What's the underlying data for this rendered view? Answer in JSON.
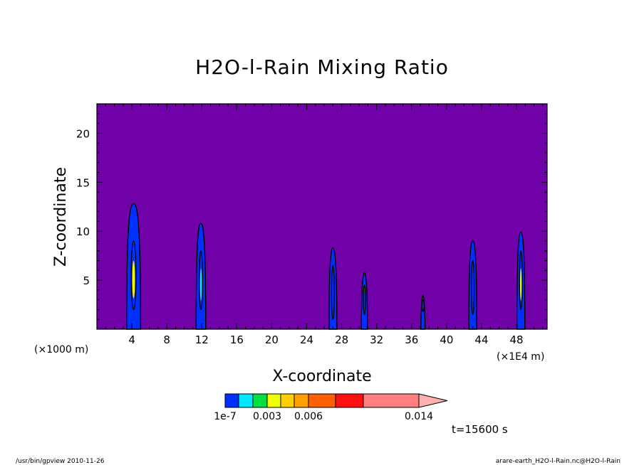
{
  "chart_data": {
    "type": "heatmap",
    "title": "H2O-l-Rain Mixing Ratio",
    "xlabel": "X-coordinate",
    "ylabel": "Z-coordinate",
    "xunit_left": "(×1000 m)",
    "xunit_right": "(×1E4 m)",
    "xlim": [
      0,
      51.5
    ],
    "ylim": [
      0,
      23
    ],
    "xticks": [
      4,
      8,
      12,
      16,
      20,
      24,
      28,
      32,
      36,
      40,
      44,
      48
    ],
    "yticks": [
      5,
      10,
      15,
      20
    ],
    "background_color": "#7000a8",
    "colorbar": {
      "colors": [
        "#0030ff",
        "#00e8ff",
        "#00e040",
        "#f0ff00",
        "#ffd000",
        "#ffa000",
        "#ff6000",
        "#ff1010",
        "#ff8080"
      ],
      "extend_color": "#ffb0b0",
      "labels": [
        {
          "text": "1e-7",
          "index": 0
        },
        {
          "text": "0.003",
          "index": 3
        },
        {
          "text": "0.006",
          "index": 6
        },
        {
          "text": "0.014",
          "index": 9
        }
      ]
    },
    "time_label": "t=15600 s",
    "cells": [
      {
        "x": 4.2,
        "top": 12.8,
        "w": 0.8,
        "core": [
          2,
          9
        ],
        "max_color": "#f0ff00"
      },
      {
        "x": 11.9,
        "top": 10.8,
        "w": 0.55,
        "core": [
          2,
          8
        ],
        "max_color": "#00e8ff"
      },
      {
        "x": 27.0,
        "top": 8.3,
        "w": 0.45,
        "core": [
          1,
          6.5
        ],
        "max_color": "#0030ff"
      },
      {
        "x": 30.6,
        "top": 5.8,
        "w": 0.35,
        "core": [
          1.5,
          4.5
        ],
        "max_color": "#0030ff"
      },
      {
        "x": 37.3,
        "top": 3.5,
        "w": 0.15,
        "core": [
          1.8,
          3
        ],
        "max_color": "#0030ff"
      },
      {
        "x": 43.0,
        "top": 9.0,
        "w": 0.45,
        "core": [
          1.5,
          7
        ],
        "max_color": "#0030ff"
      },
      {
        "x": 48.5,
        "top": 9.9,
        "w": 0.45,
        "core": [
          2,
          8
        ],
        "max_color": "#f0ff00"
      }
    ]
  },
  "footer": {
    "left": "/usr/bin/gpview  2010-11-26",
    "right": "arare-earth_H2O-l-Rain.nc@H2O-l-Rain"
  }
}
